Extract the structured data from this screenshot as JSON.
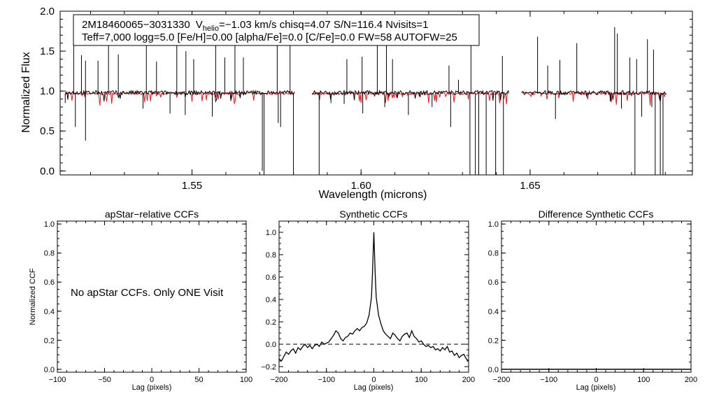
{
  "chart_data": [
    {
      "type": "line",
      "id": "spectrum",
      "xlabel": "Wavelength (microns)",
      "ylabel": "Normalized Flux",
      "xlim": [
        1.511,
        1.698
      ],
      "ylim": [
        -0.05,
        2.0
      ],
      "xticks": [
        "1.55",
        "1.60",
        "1.65"
      ],
      "xtick_values": [
        1.55,
        1.6,
        1.65
      ],
      "yticks": [
        "0.0",
        "0.5",
        "1.0",
        "1.5",
        "2.0"
      ],
      "ytick_values": [
        0.0,
        0.5,
        1.0,
        1.5,
        2.0
      ],
      "chip_gaps": [
        [
          1.5805,
          1.5855
        ],
        [
          1.644,
          1.6475
        ]
      ],
      "legend": {
        "star_id": "2M18460065−3031330",
        "v_prefix": "V",
        "v_sub": "helio",
        "line1_rest": "=−1.03 km/s  chisq=4.07  S/N=116.4  Nvisits=1",
        "line2": "Teff=7,000 logg=5.0 [Fe/H]=0.00 [alpha/Fe]=0.0 [C/Fe]=0.0 FW=58 AUTOFW=25"
      },
      "series": [
        {
          "name": "observed",
          "color": "#000000",
          "continuum": 0.97
        },
        {
          "name": "model",
          "color": "#e8161b",
          "continuum": 0.97
        }
      ],
      "spikes_up": [
        [
          1.515,
          1.62
        ],
        [
          1.5173,
          1.45
        ],
        [
          1.5185,
          1.38
        ],
        [
          1.5222,
          1.38
        ],
        [
          1.5253,
          1.6
        ],
        [
          1.5282,
          1.46
        ],
        [
          1.5365,
          1.63
        ],
        [
          1.5395,
          1.37
        ],
        [
          1.5455,
          1.64
        ],
        [
          1.5482,
          1.5
        ],
        [
          1.5505,
          1.4
        ],
        [
          1.557,
          1.62
        ],
        [
          1.5597,
          1.42
        ],
        [
          1.5627,
          1.6
        ],
        [
          1.5652,
          1.42
        ],
        [
          1.5752,
          1.62
        ],
        [
          1.579,
          1.6
        ],
        [
          1.5958,
          1.4
        ],
        [
          1.6003,
          1.43
        ],
        [
          1.6048,
          1.6
        ],
        [
          1.6075,
          1.6
        ],
        [
          1.6093,
          1.4
        ],
        [
          1.626,
          1.32
        ],
        [
          1.6288,
          1.14
        ],
        [
          1.6325,
          1.6
        ],
        [
          1.6418,
          1.44
        ],
        [
          1.6522,
          1.68
        ],
        [
          1.6552,
          1.32
        ],
        [
          1.6588,
          1.39
        ],
        [
          1.6638,
          1.6
        ],
        [
          1.675,
          1.8
        ],
        [
          1.6758,
          1.72
        ],
        [
          1.6795,
          1.42
        ],
        [
          1.6815,
          1.4
        ],
        [
          1.6847,
          1.65
        ],
        [
          1.6865,
          1.52
        ]
      ],
      "spikes_down": [
        [
          1.5125,
          0.85
        ],
        [
          1.5155,
          0.55
        ],
        [
          1.5185,
          0.38
        ],
        [
          1.5355,
          0.78
        ],
        [
          1.5435,
          0.72
        ],
        [
          1.548,
          0.7
        ],
        [
          1.556,
          0.68
        ],
        [
          1.5708,
          0.0
        ],
        [
          1.5713,
          -0.05
        ],
        [
          1.5755,
          0.6
        ],
        [
          1.5762,
          0.55
        ],
        [
          1.58,
          -0.05
        ],
        [
          1.5876,
          -0.05
        ],
        [
          1.5911,
          0.85
        ],
        [
          1.595,
          0.84
        ],
        [
          1.6005,
          0.72
        ],
        [
          1.607,
          0.8
        ],
        [
          1.614,
          0.7
        ],
        [
          1.621,
          0.8
        ],
        [
          1.6265,
          0.55
        ],
        [
          1.6322,
          -0.05
        ],
        [
          1.6338,
          -0.05
        ],
        [
          1.6348,
          -0.05
        ],
        [
          1.637,
          -0.05
        ],
        [
          1.6398,
          -0.05
        ],
        [
          1.6421,
          -0.05
        ],
        [
          1.6575,
          0.65
        ],
        [
          1.677,
          0.78
        ],
        [
          1.681,
          -0.05
        ],
        [
          1.683,
          0.68
        ],
        [
          1.686,
          0.8
        ],
        [
          1.687,
          -0.05
        ],
        [
          1.6885,
          -0.05
        ],
        [
          1.6893,
          -0.05
        ]
      ]
    },
    {
      "type": "line",
      "id": "apstar_ccf",
      "title": "apStar−relative CCFs",
      "xlabel": "Lag (pixels)",
      "ylabel": "Normalized CCF",
      "xlim": [
        -100,
        100
      ],
      "ylim": [
        -0.02,
        1.02
      ],
      "xticks": [
        "−100",
        "−50",
        "0",
        "50",
        "100"
      ],
      "xtick_values": [
        -100,
        -50,
        0,
        50,
        100
      ],
      "yticks": [
        "0.0",
        "0.2",
        "0.4",
        "0.6",
        "0.8",
        "1.0"
      ],
      "ytick_values": [
        0.0,
        0.2,
        0.4,
        0.6,
        0.8,
        1.0
      ],
      "annotation": "No apStar CCFs.  Only ONE Visit",
      "series": []
    },
    {
      "type": "line",
      "id": "synthetic_ccf",
      "title": "Synthetic CCFs",
      "xlabel": "Lag (pixels)",
      "xlim": [
        -200,
        200
      ],
      "ylim": [
        -0.25,
        1.1
      ],
      "xticks": [
        "−200",
        "−100",
        "0",
        "100",
        "200"
      ],
      "xtick_values": [
        -200,
        -100,
        0,
        100,
        200
      ],
      "yticks": [
        "−0.2",
        "0.0",
        "0.2",
        "0.4",
        "0.6",
        "0.8",
        "1.0"
      ],
      "ytick_values": [
        -0.2,
        0.0,
        0.2,
        0.4,
        0.6,
        0.8,
        1.0
      ],
      "zero_line": 0.0,
      "series": [
        {
          "name": "synthetic",
          "x": [
            -200,
            -195,
            -190,
            -185,
            -180,
            -175,
            -170,
            -165,
            -160,
            -155,
            -150,
            -145,
            -140,
            -135,
            -130,
            -125,
            -120,
            -115,
            -110,
            -105,
            -100,
            -95,
            -90,
            -85,
            -80,
            -75,
            -70,
            -65,
            -60,
            -55,
            -50,
            -45,
            -40,
            -35,
            -30,
            -25,
            -20,
            -15,
            -10,
            -5,
            -3,
            0,
            3,
            5,
            10,
            15,
            20,
            25,
            30,
            35,
            40,
            45,
            50,
            55,
            60,
            65,
            70,
            75,
            80,
            85,
            90,
            95,
            100,
            105,
            110,
            115,
            120,
            125,
            130,
            135,
            140,
            145,
            150,
            155,
            160,
            165,
            170,
            175,
            180,
            185,
            190,
            195,
            200
          ],
          "y": [
            -0.13,
            -0.15,
            -0.11,
            -0.07,
            -0.09,
            -0.06,
            -0.04,
            -0.08,
            -0.03,
            -0.05,
            -0.02,
            0.0,
            -0.03,
            -0.01,
            -0.04,
            -0.01,
            0.0,
            -0.02,
            0.02,
            0.0,
            0.01,
            0.02,
            0.05,
            0.08,
            0.12,
            0.1,
            0.05,
            0.03,
            0.06,
            0.07,
            0.1,
            0.09,
            0.12,
            0.14,
            0.12,
            0.15,
            0.16,
            0.19,
            0.26,
            0.42,
            0.62,
            1.0,
            0.62,
            0.42,
            0.26,
            0.18,
            0.12,
            0.09,
            0.07,
            0.05,
            0.1,
            0.08,
            0.05,
            0.03,
            0.07,
            0.09,
            0.1,
            0.06,
            0.12,
            0.07,
            0.05,
            0.02,
            0.03,
            0.0,
            -0.02,
            -0.01,
            -0.03,
            -0.02,
            -0.05,
            -0.04,
            -0.06,
            -0.03,
            -0.05,
            -0.02,
            -0.07,
            -0.06,
            -0.1,
            -0.08,
            -0.12,
            -0.1,
            -0.09,
            -0.13,
            -0.15
          ]
        }
      ]
    },
    {
      "type": "line",
      "id": "difference_ccf",
      "title": "Difference Synthetic CCFs",
      "xlabel": "Lag (pixels)",
      "xlim": [
        -200,
        200
      ],
      "ylim": [
        -0.02,
        1.02
      ],
      "xticks": [
        "−200",
        "−100",
        "0",
        "100",
        "200"
      ],
      "xtick_values": [
        -200,
        -100,
        0,
        100,
        200
      ],
      "yticks": [
        "0.0",
        "0.2",
        "0.4",
        "0.6",
        "0.8",
        "1.0"
      ],
      "ytick_values": [
        0.0,
        0.2,
        0.4,
        0.6,
        0.8,
        1.0
      ],
      "series": [
        {
          "name": "difference",
          "x": [
            -200,
            200
          ],
          "y": [
            0.0,
            0.0
          ]
        }
      ]
    }
  ]
}
